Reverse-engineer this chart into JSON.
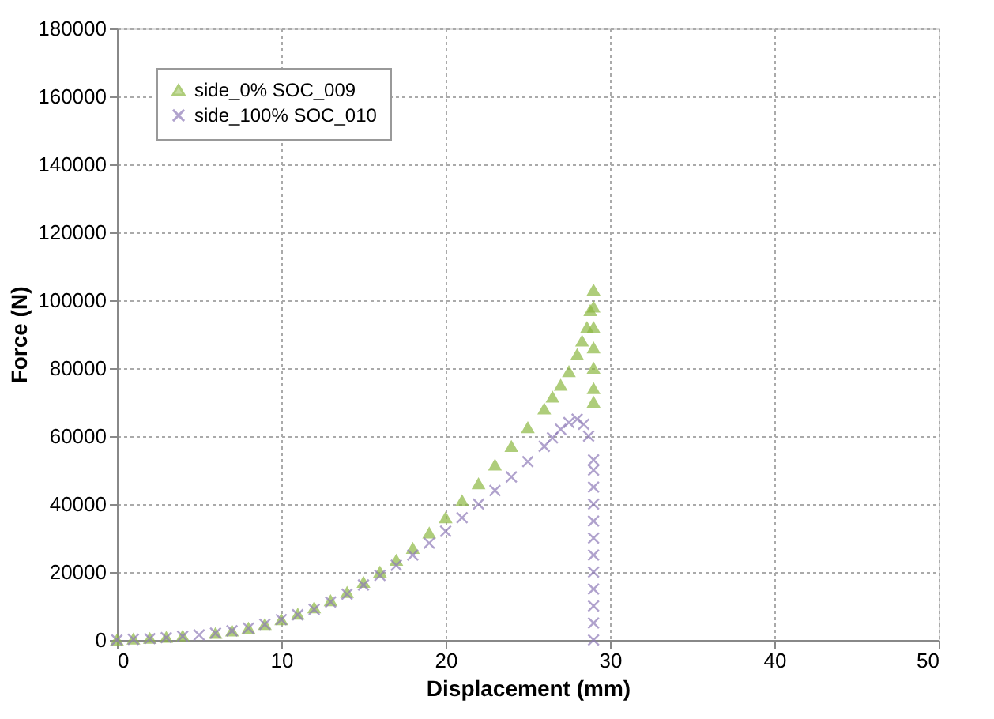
{
  "chart_data": {
    "type": "scatter",
    "xlabel": "Displacement (mm)",
    "ylabel": "Force (N)",
    "xlim": [
      0,
      50
    ],
    "xticks": [
      0,
      10,
      20,
      30,
      40,
      50
    ],
    "ylim": [
      0,
      180000
    ],
    "yticks": [
      0,
      20000,
      40000,
      60000,
      80000,
      100000,
      120000,
      140000,
      160000,
      180000
    ],
    "grid": true,
    "legend": "top left",
    "series": [
      {
        "name": "side_0% SOC_009",
        "color": "#8db843",
        "marker": "triangle",
        "x": [
          0,
          1,
          2,
          3,
          4,
          5,
          6,
          7,
          8,
          9,
          10,
          11,
          12,
          13,
          14,
          15,
          16,
          17,
          18,
          19,
          20,
          21,
          22,
          23,
          24,
          25,
          26,
          26.5,
          27,
          27.5,
          28,
          28.3,
          28.6,
          28.8,
          29,
          29,
          29,
          29,
          29,
          29,
          29
        ],
        "values": [
          0,
          300,
          500,
          800,
          1200,
          null,
          2000,
          2700,
          3500,
          4600,
          6000,
          7600,
          9500,
          11600,
          14000,
          17000,
          20000,
          23500,
          27000,
          31500,
          36000,
          41000,
          46000,
          51500,
          57000,
          62500,
          68000,
          71500,
          75000,
          79000,
          84000,
          88000,
          92000,
          97000,
          103000,
          98000,
          92000,
          86000,
          80000,
          74000,
          70000
        ]
      },
      {
        "name": "side_100% SOC_010",
        "color": "#8f7bb8",
        "marker": "cross",
        "x": [
          0,
          1,
          2,
          3,
          4,
          5,
          6,
          7,
          8,
          9,
          10,
          11,
          12,
          13,
          14,
          15,
          16,
          17,
          18,
          19,
          20,
          21,
          22,
          23,
          24,
          25,
          26,
          26.5,
          27,
          27.5,
          28,
          28.4,
          28.7,
          29,
          29,
          29,
          29,
          29,
          29,
          29,
          29,
          29,
          29,
          29,
          29
        ],
        "values": [
          0,
          200,
          400,
          700,
          1100,
          1500,
          2000,
          2700,
          3500,
          4600,
          6000,
          7400,
          9000,
          11200,
          13500,
          16200,
          19000,
          22000,
          25000,
          28500,
          32000,
          36000,
          40000,
          44000,
          48000,
          52500,
          57000,
          59500,
          62000,
          64000,
          65000,
          63500,
          60000,
          53000,
          50000,
          45000,
          40000,
          35000,
          30000,
          25000,
          20000,
          15000,
          10000,
          5000,
          0
        ]
      }
    ]
  }
}
